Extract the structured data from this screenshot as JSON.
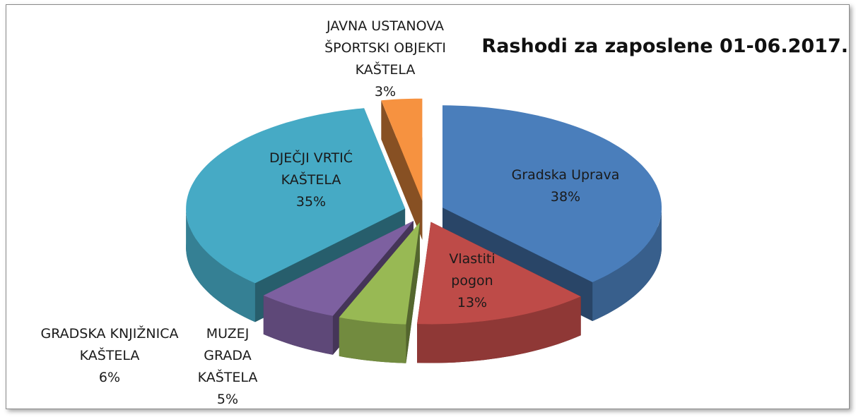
{
  "chart_data": {
    "type": "pie",
    "title": "Rashodi za zaposlene 01-06.2017.",
    "categories": [
      "Gradska Uprava",
      "Vlastiti pogon",
      "MUZEJ GRADA KAŠTELA",
      "GRADSKA KNJIŽNICA KAŠTELA",
      "DJEČJI VRTIĆ KAŠTELA",
      "JAVNA USTANOVA ŠPORTSKI OBJEKTI KAŠTELA"
    ],
    "values": [
      38,
      13,
      5,
      6,
      35,
      3
    ],
    "value_labels": [
      "38%",
      "13%",
      "5%",
      "6%",
      "35%",
      "3%"
    ],
    "colors": [
      "#4a7ebb",
      "#be4b48",
      "#98b954",
      "#7d60a0",
      "#46aac5",
      "#f69240"
    ]
  }
}
